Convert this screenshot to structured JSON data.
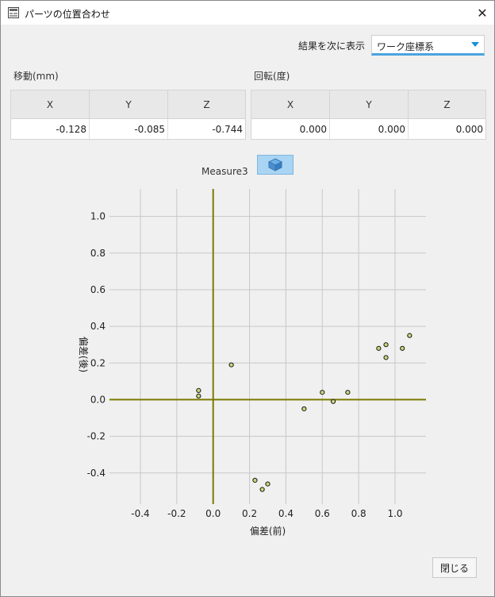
{
  "window": {
    "title": "パーツの位置合わせ",
    "close_glyph": "✕"
  },
  "display": {
    "label": "結果を次に表示",
    "selected": "ワーク座標系"
  },
  "translation": {
    "label": "移動(mm)",
    "headers": [
      "X",
      "Y",
      "Z"
    ],
    "values": [
      "-0.128",
      "-0.085",
      "-0.744"
    ]
  },
  "rotation": {
    "label": "回転(度)",
    "headers": [
      "X",
      "Y",
      "Z"
    ],
    "values": [
      "0.000",
      "0.000",
      "0.000"
    ]
  },
  "measure": {
    "label": "Measure3",
    "button_icon": "3d-view-icon"
  },
  "chart_data": {
    "type": "scatter",
    "xlabel": "偏差(前)",
    "ylabel": "偏差(後)",
    "xlim": [
      -0.57,
      1.17
    ],
    "ylim": [
      -0.57,
      1.15
    ],
    "xticks": [
      -0.4,
      -0.2,
      0.0,
      0.2,
      0.4,
      0.6,
      0.8,
      1.0
    ],
    "yticks": [
      1.0,
      0.8,
      0.6,
      0.4,
      0.2,
      0.0,
      -0.2,
      -0.4
    ],
    "grid": true,
    "axis_color": "#7a7a00",
    "point_color": "#c8d87a",
    "points": [
      {
        "x": -0.08,
        "y": 0.05
      },
      {
        "x": -0.08,
        "y": 0.02
      },
      {
        "x": 0.1,
        "y": 0.19
      },
      {
        "x": 0.23,
        "y": -0.44
      },
      {
        "x": 0.27,
        "y": -0.49
      },
      {
        "x": 0.3,
        "y": -0.46
      },
      {
        "x": 0.5,
        "y": -0.05
      },
      {
        "x": 0.6,
        "y": 0.04
      },
      {
        "x": 0.66,
        "y": -0.01
      },
      {
        "x": 0.74,
        "y": 0.04
      },
      {
        "x": 0.91,
        "y": 0.28
      },
      {
        "x": 0.95,
        "y": 0.3
      },
      {
        "x": 0.95,
        "y": 0.23
      },
      {
        "x": 1.04,
        "y": 0.28
      },
      {
        "x": 1.08,
        "y": 0.35
      }
    ]
  },
  "footer": {
    "close_label": "閉じる"
  }
}
